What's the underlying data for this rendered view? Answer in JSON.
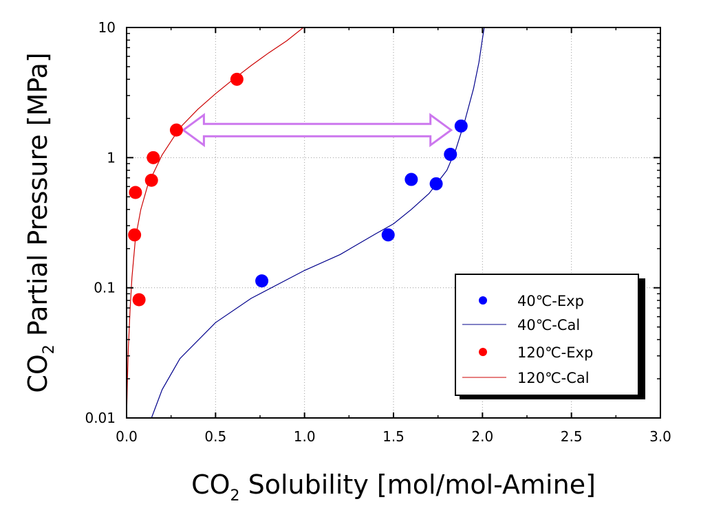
{
  "chart_data": {
    "type": "scatter",
    "xlabel": "CO₂ Solubility [mol/mol-Amine]",
    "xlabel_parts": {
      "prefix": "CO",
      "sub": "2",
      "rest": " Solubility [mol/mol-Amine]"
    },
    "ylabel": "CO₂ Partial Pressure [MPa]",
    "ylabel_parts": {
      "prefix": "CO",
      "sub": "2",
      "rest": " Partial Pressure [MPa]"
    },
    "xlim": [
      0,
      3.0
    ],
    "ylim": [
      0.01,
      10
    ],
    "yscale": "log",
    "grid": true,
    "x_ticks": [
      {
        "value": 0.0,
        "label": "0.0"
      },
      {
        "value": 0.5,
        "label": "0.5"
      },
      {
        "value": 1.0,
        "label": "1.0"
      },
      {
        "value": 1.5,
        "label": "1.5"
      },
      {
        "value": 2.0,
        "label": "2.0"
      },
      {
        "value": 2.5,
        "label": "2.5"
      },
      {
        "value": 3.0,
        "label": "3.0"
      }
    ],
    "y_ticks": [
      {
        "value": 0.01,
        "label": "0.01"
      },
      {
        "value": 0.1,
        "label": "0.1"
      },
      {
        "value": 1,
        "label": "1"
      },
      {
        "value": 10,
        "label": "10"
      }
    ],
    "legend_position": "bottom-right",
    "series": [
      {
        "name": "40℃-Exp",
        "kind": "scatter",
        "color": "#0000ff",
        "points": [
          [
            0.76,
            0.113
          ],
          [
            1.47,
            0.255
          ],
          [
            1.6,
            0.68
          ],
          [
            1.74,
            0.63
          ],
          [
            1.82,
            1.06
          ],
          [
            1.88,
            1.75
          ]
        ]
      },
      {
        "name": "40℃-Cal",
        "kind": "line",
        "color": "#00008b",
        "points": [
          [
            0.14,
            0.01
          ],
          [
            0.2,
            0.0165
          ],
          [
            0.3,
            0.0286
          ],
          [
            0.5,
            0.054
          ],
          [
            0.7,
            0.083
          ],
          [
            1.0,
            0.136
          ],
          [
            1.2,
            0.18
          ],
          [
            1.4,
            0.26
          ],
          [
            1.5,
            0.31
          ],
          [
            1.6,
            0.4
          ],
          [
            1.7,
            0.53
          ],
          [
            1.8,
            0.8
          ],
          [
            1.85,
            1.15
          ],
          [
            1.9,
            1.9
          ],
          [
            1.95,
            3.4
          ],
          [
            1.98,
            5.4
          ],
          [
            2.0,
            8.2
          ],
          [
            2.01,
            10
          ]
        ]
      },
      {
        "name": "120℃-Exp",
        "kind": "scatter",
        "color": "#ff0000",
        "points": [
          [
            0.07,
            0.081
          ],
          [
            0.045,
            0.255
          ],
          [
            0.05,
            0.54
          ],
          [
            0.14,
            0.67
          ],
          [
            0.15,
            1.0
          ],
          [
            0.28,
            1.63
          ],
          [
            0.62,
            4.0
          ]
        ]
      },
      {
        "name": "120℃-Cal",
        "kind": "line",
        "color": "#cc0000",
        "points": [
          [
            0.0,
            0.01
          ],
          [
            0.005,
            0.02
          ],
          [
            0.01,
            0.035
          ],
          [
            0.02,
            0.07
          ],
          [
            0.03,
            0.12
          ],
          [
            0.05,
            0.24
          ],
          [
            0.08,
            0.4
          ],
          [
            0.12,
            0.62
          ],
          [
            0.2,
            1.05
          ],
          [
            0.3,
            1.7
          ],
          [
            0.4,
            2.35
          ],
          [
            0.5,
            3.1
          ],
          [
            0.6,
            4.0
          ],
          [
            0.7,
            5.1
          ],
          [
            0.8,
            6.4
          ],
          [
            0.9,
            7.9
          ],
          [
            0.99,
            9.9
          ],
          [
            1.0,
            10
          ]
        ]
      }
    ],
    "annotations": [
      {
        "type": "double-arrow",
        "color": "#cc77ee",
        "from": [
          0.28,
          1.63
        ],
        "to": [
          1.87,
          1.63
        ]
      }
    ]
  }
}
